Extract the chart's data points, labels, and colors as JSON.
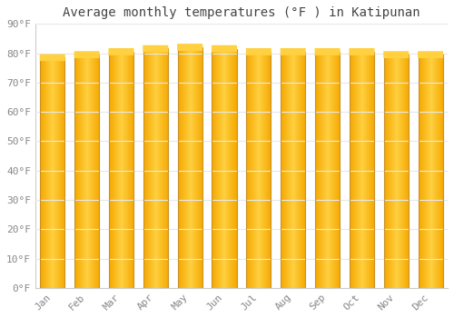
{
  "title": "Average monthly temperatures (°F ) in Katipunan",
  "months": [
    "Jan",
    "Feb",
    "Mar",
    "Apr",
    "May",
    "Jun",
    "Jul",
    "Aug",
    "Sep",
    "Oct",
    "Nov",
    "Dec"
  ],
  "values": [
    78.5,
    79.5,
    80.5,
    81.5,
    82.0,
    81.5,
    80.5,
    80.5,
    80.5,
    80.5,
    79.5,
    79.5
  ],
  "bar_color_center": "#FFD040",
  "bar_color_edge": "#F5A800",
  "bar_border_color": "#C8922A",
  "ylim": [
    0,
    90
  ],
  "yticks": [
    0,
    10,
    20,
    30,
    40,
    50,
    60,
    70,
    80,
    90
  ],
  "ytick_labels": [
    "0°F",
    "10°F",
    "20°F",
    "30°F",
    "40°F",
    "50°F",
    "60°F",
    "70°F",
    "80°F",
    "90°F"
  ],
  "background_color": "#FFFFFF",
  "grid_color": "#E8E8E8",
  "title_fontsize": 10,
  "tick_fontsize": 8,
  "tick_color": "#888888",
  "font_family": "monospace"
}
